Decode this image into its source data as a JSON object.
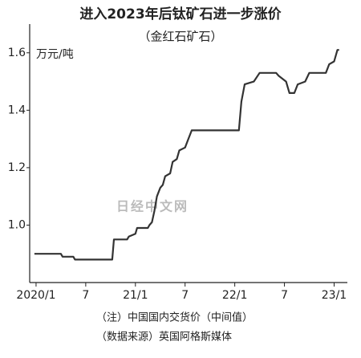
{
  "chart_data": {
    "type": "line",
    "title": "进入2023年后钛矿石进一步涨价",
    "subtitle": "（金红石矿石）",
    "y_label": "万元/吨",
    "watermark": "日经中文网",
    "notes": [
      "（注）中国国内交货价（中间值）",
      "（数据来源）英国阿格斯媒体"
    ],
    "color": "#333333",
    "x": [
      -0.2,
      3,
      3.2,
      4.5,
      4.7,
      9.2,
      9.4,
      11,
      11.2,
      12,
      12.2,
      13.5,
      13.7,
      14,
      14.3,
      14.6,
      15,
      15.3,
      15.6,
      16.2,
      16.5,
      17,
      17.3,
      18,
      18.4,
      18.8,
      24.5,
      24.8,
      25.2,
      26.3,
      27,
      29,
      29.3,
      30.2,
      30.6,
      31.2,
      31.6,
      32.5,
      33,
      35,
      35.4,
      36,
      36.4,
      36.6
    ],
    "values": [
      0.9,
      0.9,
      0.89,
      0.89,
      0.88,
      0.88,
      0.95,
      0.95,
      0.96,
      0.97,
      0.99,
      0.99,
      1.0,
      1.01,
      1.05,
      1.1,
      1.13,
      1.14,
      1.17,
      1.18,
      1.22,
      1.23,
      1.26,
      1.27,
      1.3,
      1.33,
      1.33,
      1.43,
      1.49,
      1.5,
      1.53,
      1.53,
      1.52,
      1.5,
      1.46,
      1.46,
      1.49,
      1.5,
      1.53,
      1.53,
      1.56,
      1.57,
      1.61,
      1.61
    ],
    "xlim": [
      -0.77,
      37.6
    ],
    "xticks": [
      {
        "value": 0,
        "label": "2020/1"
      },
      {
        "value": 6,
        "label": "7"
      },
      {
        "value": 12,
        "label": "21/1"
      },
      {
        "value": 18,
        "label": "7"
      },
      {
        "value": 24,
        "label": "22/1"
      },
      {
        "value": 30,
        "label": "7"
      },
      {
        "value": 36,
        "label": "23/1"
      }
    ],
    "ylim": [
      0.8,
      1.7
    ],
    "yticks": [
      {
        "value": 1,
        "label": "1.0"
      },
      1.2,
      1.4,
      1.6
    ]
  }
}
